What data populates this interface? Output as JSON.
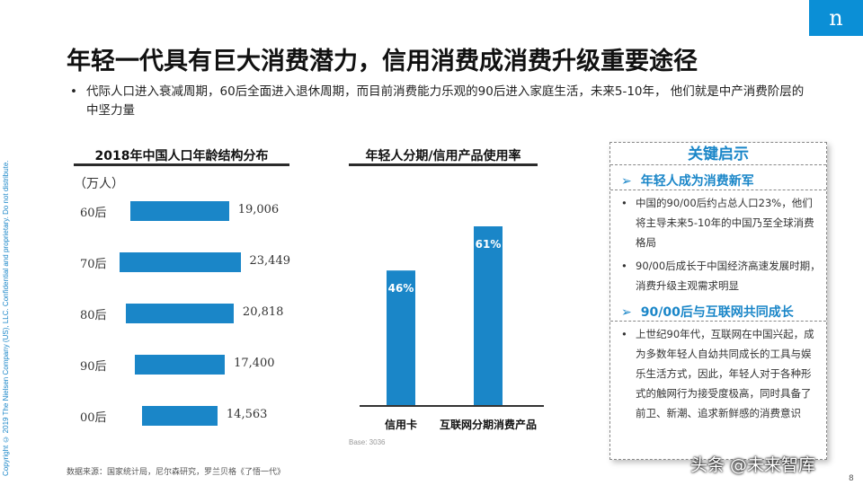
{
  "copyright": "Copyright © 2019 The Nielsen Company (US), LLC. Confidential and proprietary. Do not distribute.",
  "logo": "n",
  "title": "年轻一代具有巨大消费潜力，信用消费成消费升级重要途径",
  "bullet": "代际人口进入衰减周期，60后全面进入退休周期，而目前消费能力乐观的90后进入家庭生活，未来5-10年， 他们就是中产消费阶层的中坚力量",
  "bullet_symbol": "•",
  "left_chart_title": "2018年中国人口年龄结构分布",
  "middle_chart_title": "年轻人分期/信用产品使用率",
  "colors": {
    "accent": "#1a86c8",
    "bar": "#1a86c8",
    "text": "#222222"
  },
  "chart_data": [
    {
      "type": "bar",
      "orientation": "horizontal",
      "title": "2018年中国人口年龄结构分布",
      "unit": "（万人）",
      "categories": [
        "60后",
        "70后",
        "80后",
        "90后",
        "00后"
      ],
      "values": [
        19006,
        23449,
        20818,
        17400,
        14563
      ],
      "value_labels": [
        "19,006",
        "23,449",
        "20,818",
        "17,400",
        "14,563"
      ]
    },
    {
      "type": "bar",
      "orientation": "vertical",
      "title": "年轻人分期/信用产品使用率",
      "categories": [
        "信用卡",
        "互联网分期消费产品"
      ],
      "values": [
        46,
        61
      ],
      "value_labels": [
        "46%",
        "61%"
      ],
      "ylim": [
        0,
        100
      ]
    }
  ],
  "base_note": "Base:    3036",
  "insights": {
    "title": "关键启示",
    "arrow": "➢",
    "sections": [
      {
        "heading": "年轻人成为消费新军",
        "items": [
          "中国的90/00后约占总人口23%，他们将主导未来5-10年的中国乃至全球消费格局",
          "90/00后成长于中国经济高速发展时期，消费升级主观需求明显"
        ]
      },
      {
        "heading": "90/00后与互联网共同成长",
        "items": [
          "上世纪90年代，互联网在中国兴起，成为多数年轻人自幼共同成长的工具与娱乐生活方式，因此，年轻人对于各种形式的触网行为接受度极高，同时具备了前卫、新潮、追求新鲜感的消费意识"
        ]
      }
    ]
  },
  "source": "数据来源：国家统计局，尼尔森研究，罗兰贝格《了悟一代》",
  "page_number": "8",
  "watermark": "头条 @未来智库"
}
